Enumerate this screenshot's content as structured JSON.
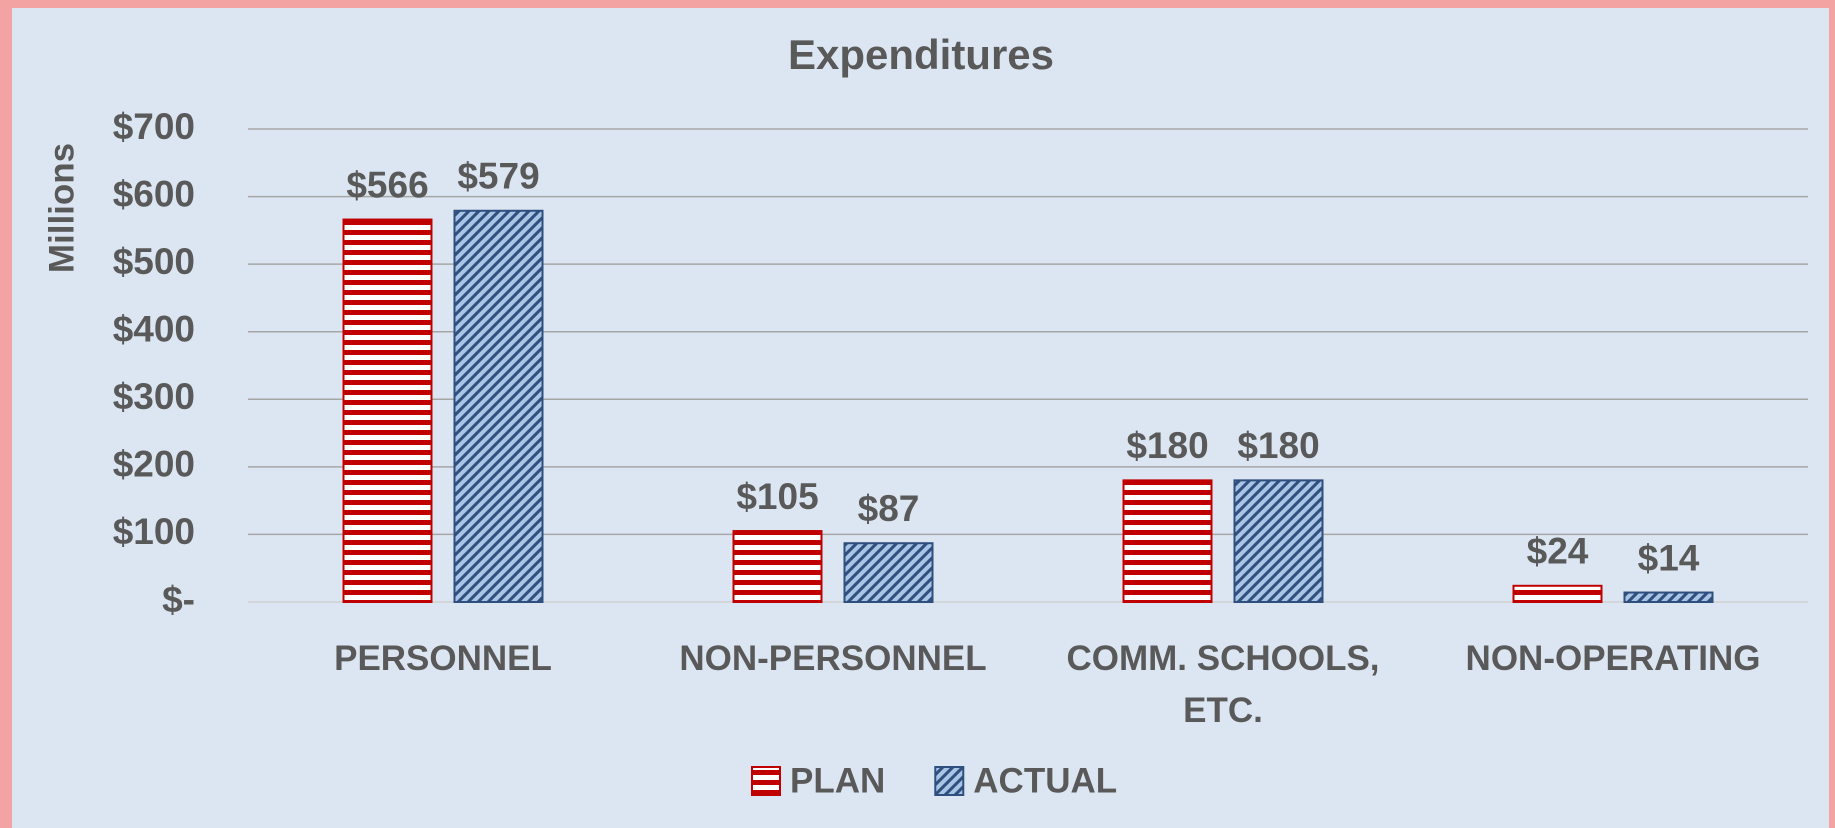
{
  "chart_data": {
    "type": "bar",
    "title": "Expenditures",
    "y_label": "Millions",
    "categories": [
      "PERSONNEL",
      "NON-PERSONNEL",
      "COMM. SCHOOLS, ETC.",
      "NON-OPERATING"
    ],
    "series": [
      {
        "name": "PLAN",
        "color": "#c00000",
        "values": [
          566,
          105,
          180,
          24
        ],
        "value_labels": [
          "$566",
          "$105",
          "$180",
          "$24"
        ]
      },
      {
        "name": "ACTUAL",
        "color": "#2f4f7f",
        "values": [
          579,
          87,
          180,
          14
        ],
        "value_labels": [
          "$579",
          "$87",
          "$180",
          "$14"
        ]
      }
    ],
    "ylim": [
      0,
      700
    ],
    "yticks": [
      {
        "value": 0,
        "label": "$-"
      },
      {
        "value": 100,
        "label": "$100"
      },
      {
        "value": 200,
        "label": "$200"
      },
      {
        "value": 300,
        "label": "$300"
      },
      {
        "value": 400,
        "label": "$400"
      },
      {
        "value": 500,
        "label": "$500"
      },
      {
        "value": 600,
        "label": "$600"
      },
      {
        "value": 700,
        "label": "$700"
      }
    ],
    "grid": true,
    "legend": "bottom"
  }
}
